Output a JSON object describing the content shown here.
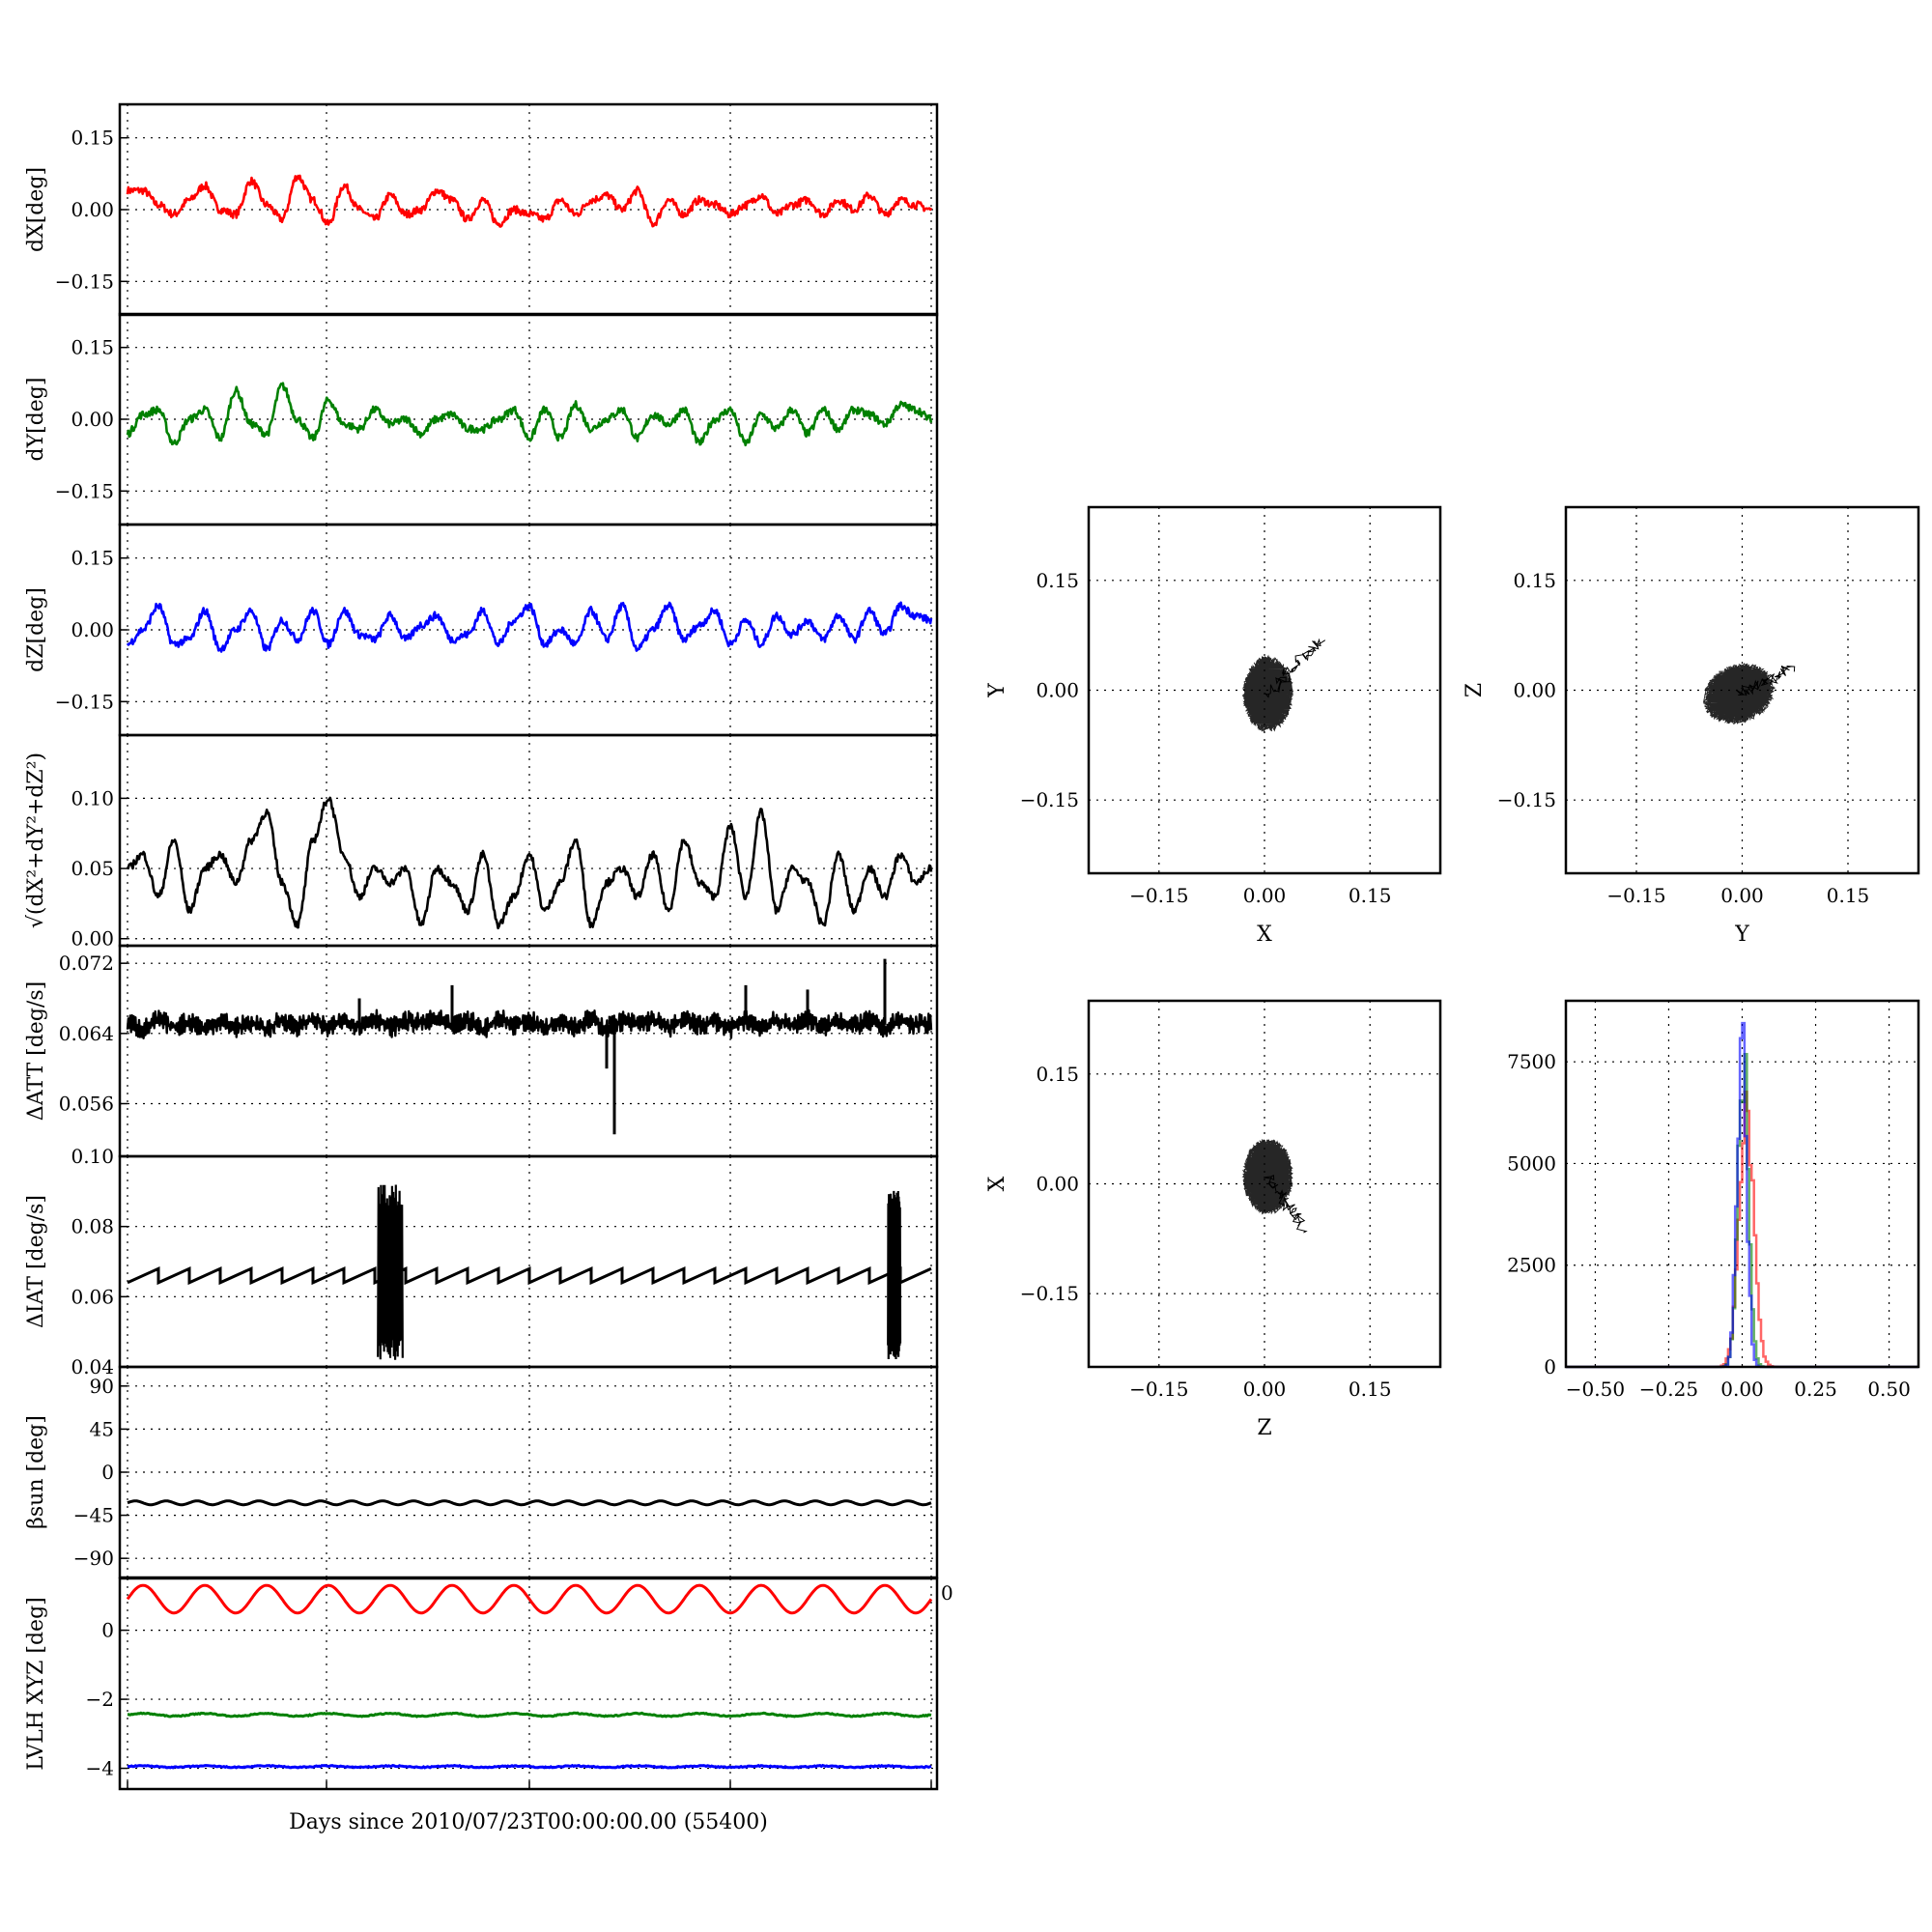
{
  "figure": {
    "xlabel_bottom": "Days since 2010/07/23T00:00:00.00 (55400)",
    "stray_tick_label": "0"
  },
  "chart_data": [
    {
      "type": "line",
      "ylabel": "dX[deg]",
      "ylim": [
        -0.22,
        0.22
      ],
      "yticks": [
        -0.15,
        0.0,
        0.15
      ],
      "ytick_labels": [
        "−0.15",
        "0.00",
        "0.15"
      ],
      "grid": true,
      "series": [
        {
          "color": "#ff0000",
          "values": [
            0.04,
            0.04,
            0.01,
            -0.01,
            0.02,
            0.05,
            0.0,
            -0.01,
            0.06,
            0.01,
            -0.02,
            0.07,
            0.02,
            -0.03,
            0.05,
            0.0,
            -0.02,
            0.03,
            -0.01,
            0.0,
            0.04,
            0.02,
            -0.02,
            0.02,
            -0.03,
            0.0,
            -0.01,
            -0.02,
            0.02,
            -0.01,
            0.02,
            0.03,
            0.0,
            0.04,
            -0.03,
            0.02,
            -0.01,
            0.02,
            0.01,
            -0.01,
            0.01,
            0.03,
            -0.01,
            0.01,
            0.02,
            -0.01,
            0.02,
            0.0,
            0.03,
            -0.01,
            0.02,
            0.01,
            0.0
          ]
        }
      ]
    },
    {
      "type": "line",
      "ylabel": "dY[deg]",
      "ylim": [
        -0.22,
        0.22
      ],
      "yticks": [
        -0.15,
        0.0,
        0.15
      ],
      "ytick_labels": [
        "−0.15",
        "0.00",
        "0.15"
      ],
      "grid": true,
      "series": [
        {
          "color": "#008000",
          "values": [
            -0.03,
            0.01,
            0.02,
            -0.05,
            0.0,
            0.02,
            -0.04,
            0.06,
            -0.01,
            -0.03,
            0.07,
            0.0,
            -0.04,
            0.04,
            -0.01,
            -0.02,
            0.02,
            -0.01,
            0.0,
            -0.03,
            0.0,
            0.01,
            -0.02,
            -0.02,
            0.0,
            0.02,
            -0.04,
            0.02,
            -0.04,
            0.03,
            -0.02,
            0.0,
            0.02,
            -0.04,
            0.01,
            -0.01,
            0.02,
            -0.05,
            0.0,
            0.02,
            -0.05,
            0.01,
            -0.02,
            0.02,
            -0.03,
            0.02,
            -0.02,
            0.02,
            0.01,
            -0.01,
            0.03,
            0.02,
            0.0
          ]
        }
      ]
    },
    {
      "type": "line",
      "ylabel": "dZ[deg]",
      "ylim": [
        -0.22,
        0.22
      ],
      "yticks": [
        -0.15,
        0.0,
        0.15
      ],
      "ytick_labels": [
        "−0.15",
        "0.00",
        "0.15"
      ],
      "grid": true,
      "series": [
        {
          "color": "#0000ff",
          "values": [
            -0.03,
            0.0,
            0.05,
            -0.03,
            -0.02,
            0.04,
            -0.04,
            0.0,
            0.04,
            -0.04,
            0.02,
            -0.02,
            0.04,
            -0.03,
            0.04,
            -0.01,
            -0.02,
            0.03,
            -0.02,
            0.01,
            0.03,
            -0.02,
            -0.01,
            0.04,
            -0.03,
            0.02,
            0.05,
            -0.03,
            0.0,
            -0.03,
            0.04,
            -0.02,
            0.05,
            -0.04,
            0.0,
            0.05,
            -0.02,
            0.01,
            0.04,
            -0.03,
            0.02,
            -0.03,
            0.03,
            -0.01,
            0.02,
            -0.02,
            0.03,
            -0.02,
            0.04,
            -0.01,
            0.05,
            0.03,
            0.02
          ]
        }
      ]
    },
    {
      "type": "line",
      "ylabel": "√(dX²+dY²+dZ²)",
      "ylim": [
        -0.005,
        0.145
      ],
      "yticks": [
        0.0,
        0.05,
        0.1
      ],
      "ytick_labels": [
        "0.00",
        "0.05",
        "0.10"
      ],
      "grid": true,
      "series": [
        {
          "color": "#000000",
          "values": [
            0.05,
            0.06,
            0.03,
            0.07,
            0.02,
            0.05,
            0.06,
            0.04,
            0.07,
            0.09,
            0.04,
            0.01,
            0.07,
            0.1,
            0.06,
            0.03,
            0.05,
            0.04,
            0.05,
            0.01,
            0.05,
            0.04,
            0.02,
            0.06,
            0.01,
            0.03,
            0.06,
            0.02,
            0.04,
            0.07,
            0.01,
            0.04,
            0.05,
            0.03,
            0.06,
            0.02,
            0.07,
            0.04,
            0.03,
            0.08,
            0.03,
            0.09,
            0.02,
            0.05,
            0.04,
            0.01,
            0.06,
            0.02,
            0.05,
            0.03,
            0.06,
            0.04,
            0.05
          ]
        }
      ]
    },
    {
      "type": "line",
      "ylabel": "ΔATT [deg/s]",
      "ylim": [
        0.05,
        0.074
      ],
      "yticks": [
        0.056,
        0.064,
        0.072
      ],
      "ytick_labels": [
        "0.056",
        "0.064",
        "0.072"
      ],
      "grid": true,
      "series": [
        {
          "color": "#000000",
          "values": [
            0.0652,
            0.0645,
            0.0655,
            0.0648,
            0.0653,
            0.0646,
            0.0654,
            0.0647,
            0.0652,
            0.0645,
            0.0655,
            0.0648,
            0.0656,
            0.0646,
            0.0655,
            0.0649,
            0.0657,
            0.0647,
            0.0654,
            0.0652,
            0.0656,
            0.0648,
            0.0655,
            0.0645,
            0.0657,
            0.065,
            0.0654,
            0.0647,
            0.0655,
            0.0648,
            0.0656,
            0.0646,
            0.0654,
            0.0651,
            0.0655,
            0.0647,
            0.0656,
            0.0649,
            0.0654,
            0.0646,
            0.0655,
            0.0648,
            0.0654,
            0.065,
            0.0656,
            0.0647,
            0.0655,
            0.0649,
            0.0654,
            0.0646,
            0.0655,
            0.065,
            0.0652
          ]
        },
        {
          "color": "#000000",
          "spikes": [
            {
              "i": 15,
              "v": 0.068
            },
            {
              "i": 21,
              "v": 0.0695
            },
            {
              "i": 31,
              "v": 0.06
            },
            {
              "i": 31.5,
              "v": 0.0525
            },
            {
              "i": 31.2,
              "v": 0.066
            },
            {
              "i": 40,
              "v": 0.0695
            },
            {
              "i": 44,
              "v": 0.069
            },
            {
              "i": 49,
              "v": 0.0725
            }
          ]
        }
      ]
    },
    {
      "type": "line",
      "ylabel": "ΔIAT [deg/s]",
      "ylim": [
        0.04,
        0.1
      ],
      "yticks": [
        0.04,
        0.06,
        0.08,
        0.1
      ],
      "ytick_labels": [
        "0.04",
        "0.06",
        "0.08",
        "0.10"
      ],
      "grid": true,
      "series": [
        {
          "color": "#000000",
          "sawtooth": {
            "base": 0.064,
            "peak": 0.068,
            "periods": 26
          },
          "bursts": [
            {
              "start": 16.2,
              "end": 17.8,
              "low": 0.042,
              "high": 0.092
            },
            {
              "start": 49.2,
              "end": 50.0,
              "low": 0.042,
              "high": 0.091
            }
          ]
        }
      ]
    },
    {
      "type": "line",
      "ylabel": "βsun [deg]",
      "ylim": [
        -110,
        110
      ],
      "yticks": [
        -90,
        -45,
        0,
        45,
        90
      ],
      "ytick_labels": [
        "−90",
        "−45",
        "0",
        "45",
        "90"
      ],
      "grid": true,
      "series": [
        {
          "color": "#000000",
          "mean": -32,
          "amplitude": 2,
          "periods": 26
        }
      ]
    },
    {
      "type": "line",
      "ylabel": "LVLH XYZ [deg]",
      "ylim": [
        -4.6,
        1.5
      ],
      "yticks": [
        -4,
        -2,
        0
      ],
      "ytick_labels": [
        "−4",
        "−2",
        "0"
      ],
      "grid": true,
      "series": [
        {
          "color": "#ff0000",
          "mean": 0.9,
          "amplitude": 0.4,
          "periods": 13
        },
        {
          "color": "#008000",
          "mean": -2.45,
          "amplitude": 0.04,
          "periods": 13
        },
        {
          "color": "#0000ff",
          "mean": -3.95,
          "amplitude": 0.02,
          "periods": 13
        }
      ]
    },
    {
      "type": "scatter",
      "xlabel": "X",
      "ylabel": "Y",
      "xlim": [
        -0.25,
        0.25
      ],
      "ylim": [
        -0.25,
        0.25
      ],
      "ticks": [
        -0.15,
        0.0,
        0.15
      ],
      "tick_labels": [
        "−0.15",
        "0.00",
        "0.15"
      ],
      "grid": true,
      "cloud": {
        "cx": 0.005,
        "cy": -0.005,
        "rx": 0.045,
        "ry": 0.05,
        "tilt": 0.7,
        "tail": [
          0.08,
          0.07
        ]
      }
    },
    {
      "type": "scatter",
      "xlabel": "Y",
      "ylabel": "Z",
      "xlim": [
        -0.25,
        0.25
      ],
      "ylim": [
        -0.25,
        0.25
      ],
      "ticks": [
        -0.15,
        0.0,
        0.15
      ],
      "tick_labels": [
        "−0.15",
        "0.00",
        "0.15"
      ],
      "grid": true,
      "cloud": {
        "cx": -0.005,
        "cy": -0.005,
        "rx": 0.055,
        "ry": 0.04,
        "tilt": 0.4,
        "tail": [
          0.07,
          0.03
        ]
      }
    },
    {
      "type": "scatter",
      "xlabel": "Z",
      "ylabel": "X",
      "xlim": [
        -0.25,
        0.25
      ],
      "ylim": [
        -0.25,
        0.25
      ],
      "ticks": [
        -0.15,
        0.0,
        0.15
      ],
      "tick_labels": [
        "−0.15",
        "0.00",
        "0.15"
      ],
      "grid": true,
      "cloud": {
        "cx": 0.005,
        "cy": 0.01,
        "rx": 0.045,
        "ry": 0.05,
        "tilt": -0.7,
        "tail": [
          0.055,
          -0.06
        ]
      }
    },
    {
      "type": "histogram",
      "xlim": [
        -0.6,
        0.6
      ],
      "ylim": [
        0,
        9000
      ],
      "xticks": [
        -0.5,
        -0.25,
        0.0,
        0.25,
        0.5
      ],
      "xtick_labels": [
        "−0.50",
        "−0.25",
        "0.00",
        "0.25",
        "0.50"
      ],
      "yticks": [
        0,
        2500,
        5000,
        7500
      ],
      "ytick_labels": [
        "0",
        "2500",
        "5000",
        "7500"
      ],
      "grid": true,
      "series": [
        {
          "color": "#ff0000",
          "center": 0.01,
          "width": 0.025,
          "peak": 6000
        },
        {
          "color": "#008000",
          "center": 0.0,
          "width": 0.018,
          "peak": 7400
        },
        {
          "color": "#0000ff",
          "center": -0.005,
          "width": 0.016,
          "peak": 8300
        }
      ]
    }
  ]
}
